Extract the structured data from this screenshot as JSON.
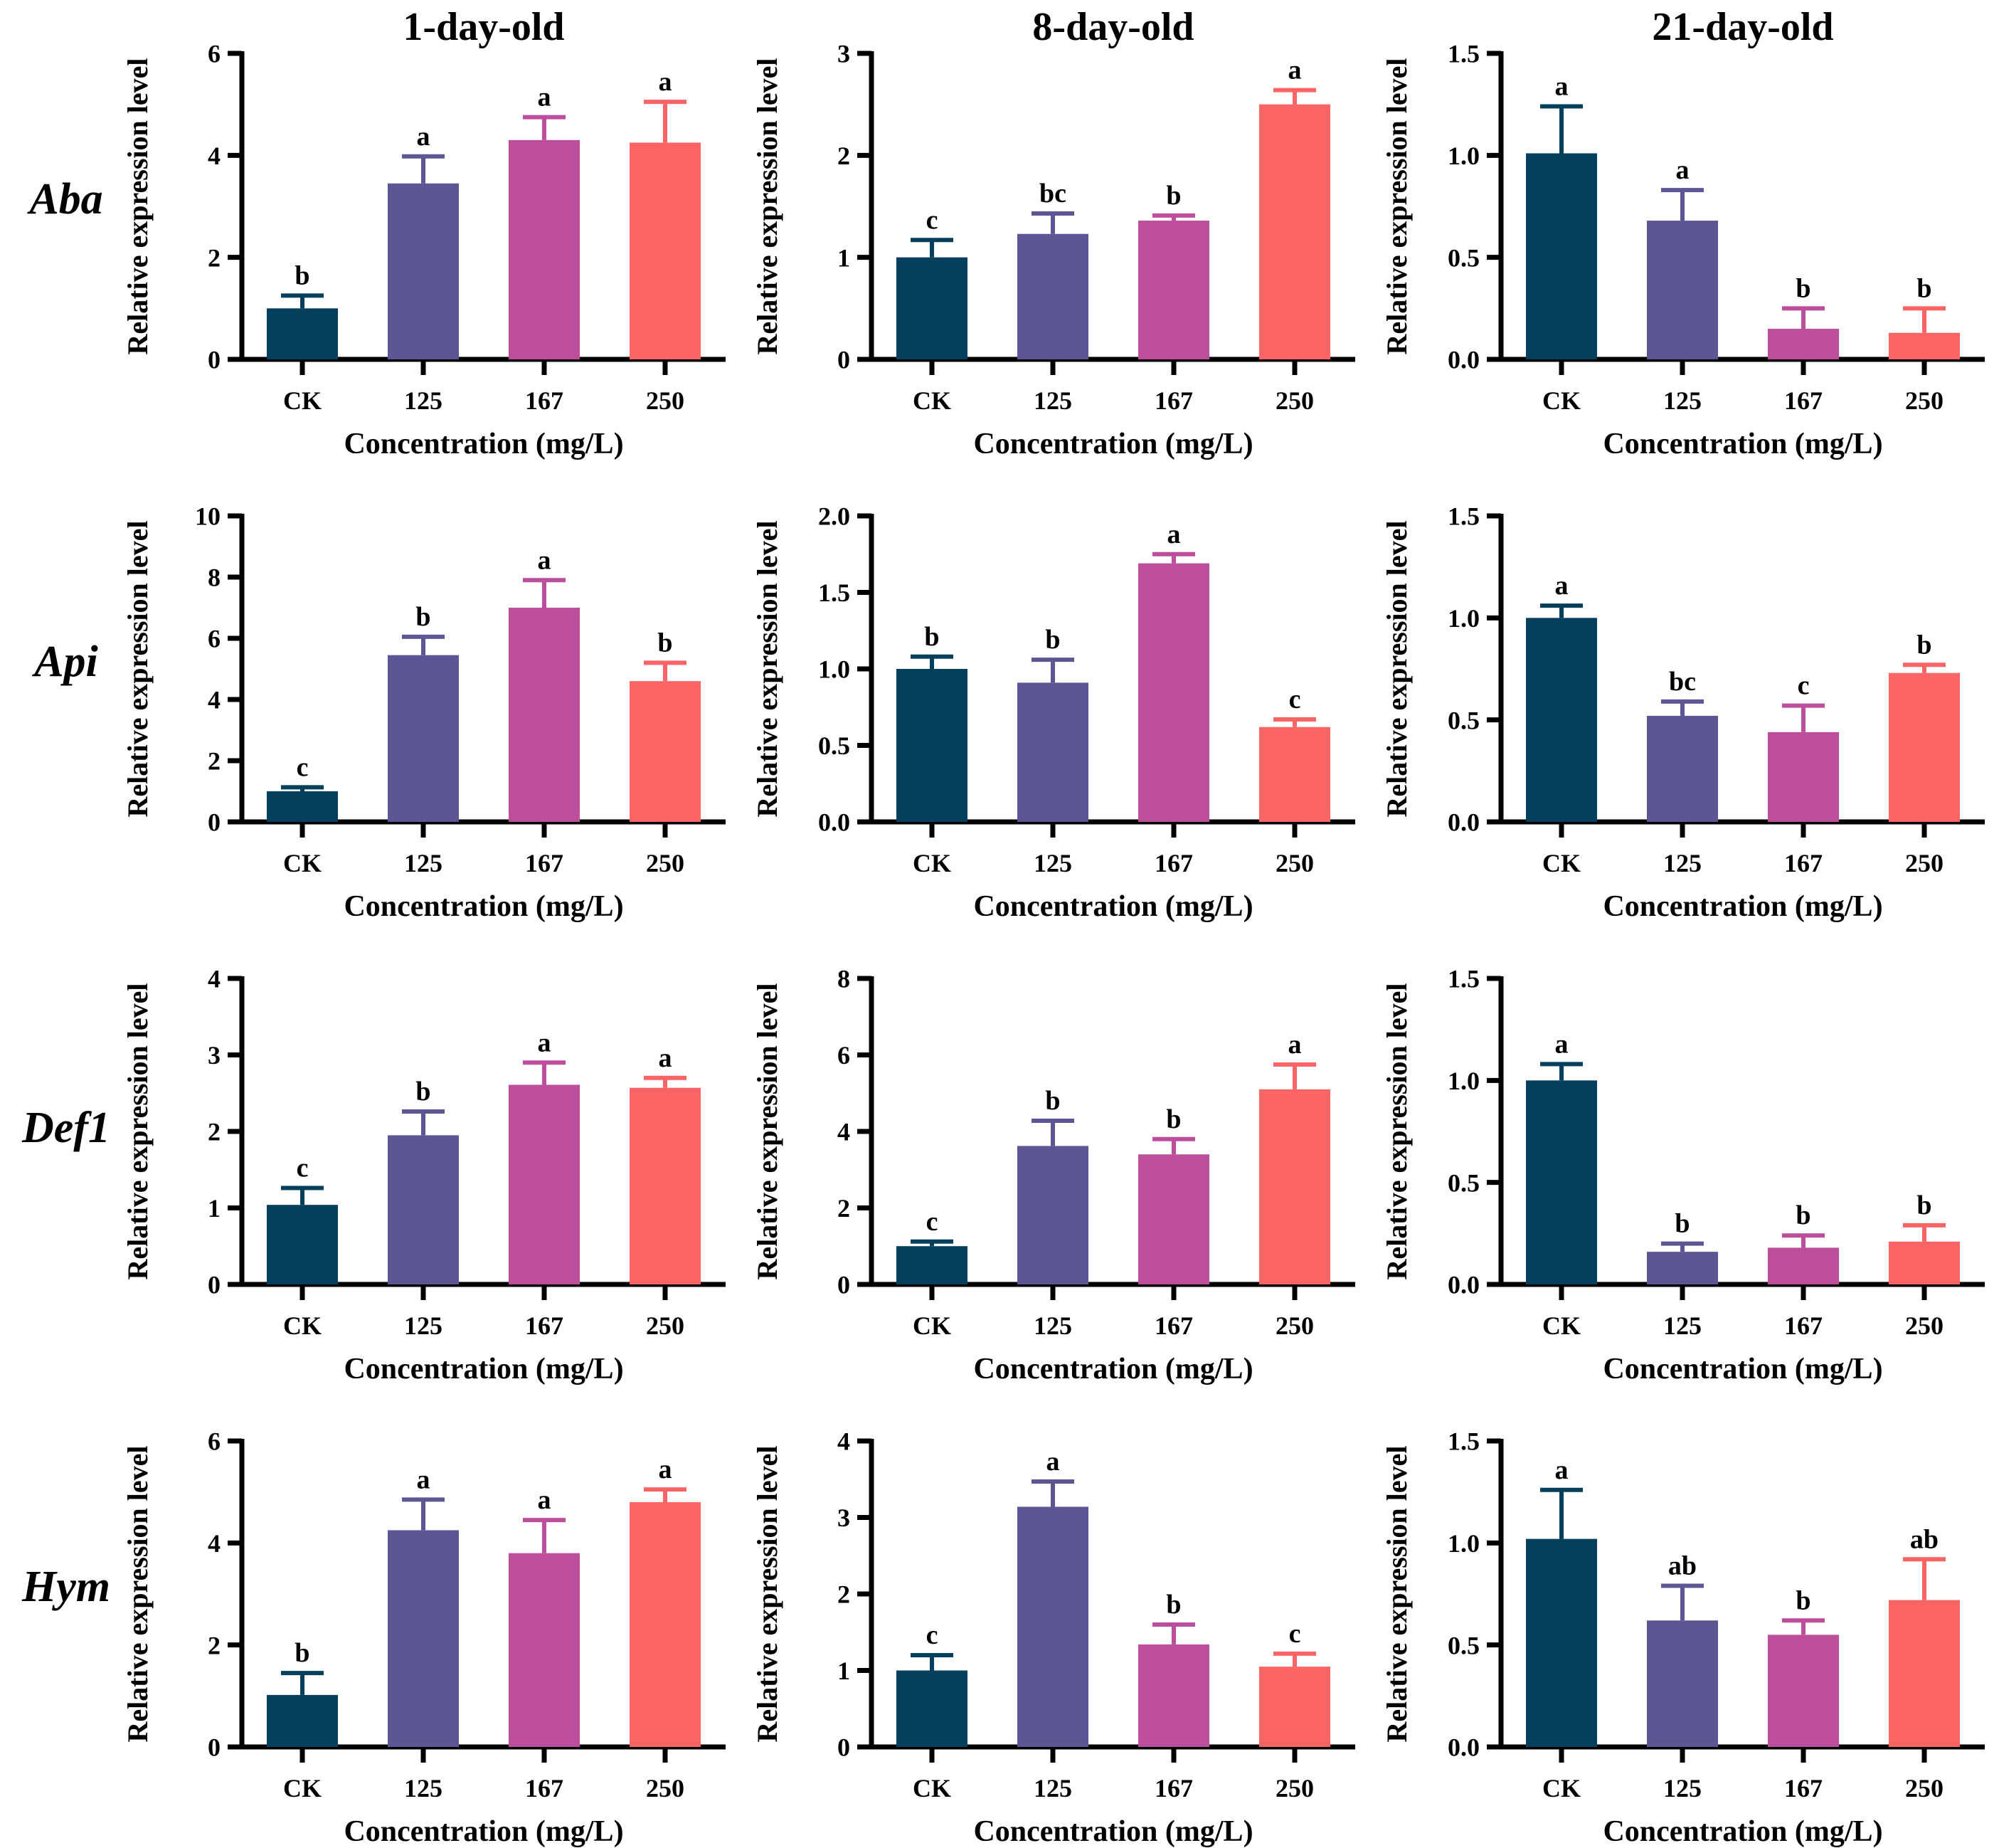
{
  "figure": {
    "column_titles": [
      "1-day-old",
      "8-day-old",
      "21-day-old"
    ],
    "row_labels": [
      "Aba",
      "Api",
      "Def1",
      "Hym"
    ],
    "ylabel": "Relative expression level",
    "xlabel": "Concentration (mg/L)",
    "categories": [
      "CK",
      "125",
      "167",
      "250"
    ],
    "bar_colors": [
      "#053F5C",
      "#5C5794",
      "#BC4E9B",
      "#FB6464"
    ],
    "axis_color": "#000000",
    "letter_color": "#000000"
  },
  "chart_data": [
    {
      "type": "bar",
      "gene": "Aba",
      "title": "1-day-old",
      "xlabel": "Concentration (mg/L)",
      "ylabel": "Relative expression level",
      "categories": [
        "CK",
        "125",
        "167",
        "250"
      ],
      "values": [
        1.0,
        3.45,
        4.3,
        4.25
      ],
      "errors_upper": [
        1.25,
        3.98,
        4.75,
        5.05
      ],
      "sig_letters": [
        "b",
        "a",
        "a",
        "a"
      ],
      "ylim": [
        0,
        6
      ],
      "yticks": [
        "0",
        "2",
        "4",
        "6"
      ]
    },
    {
      "type": "bar",
      "gene": "Aba",
      "title": "8-day-old",
      "xlabel": "Concentration (mg/L)",
      "ylabel": "Relative expression level",
      "categories": [
        "CK",
        "125",
        "167",
        "250"
      ],
      "values": [
        1.0,
        1.23,
        1.36,
        2.5
      ],
      "errors_upper": [
        1.17,
        1.43,
        1.41,
        2.64
      ],
      "sig_letters": [
        "c",
        "bc",
        "b",
        "a"
      ],
      "ylim": [
        0,
        3
      ],
      "yticks": [
        "0",
        "1",
        "2",
        "3"
      ]
    },
    {
      "type": "bar",
      "gene": "Aba",
      "title": "21-day-old",
      "xlabel": "Concentration (mg/L)",
      "ylabel": "Relative expression level",
      "categories": [
        "CK",
        "125",
        "167",
        "250"
      ],
      "values": [
        1.01,
        0.68,
        0.15,
        0.13
      ],
      "errors_upper": [
        1.24,
        0.83,
        0.25,
        0.25
      ],
      "sig_letters": [
        "a",
        "a",
        "b",
        "b"
      ],
      "ylim": [
        0,
        1.5
      ],
      "yticks": [
        "0.0",
        "0.5",
        "1.0",
        "1.5"
      ]
    },
    {
      "type": "bar",
      "gene": "Api",
      "title": "1-day-old",
      "xlabel": "Concentration (mg/L)",
      "ylabel": "Relative expression level",
      "categories": [
        "CK",
        "125",
        "167",
        "250"
      ],
      "values": [
        1.0,
        5.45,
        7.0,
        4.6
      ],
      "errors_upper": [
        1.13,
        6.05,
        7.9,
        5.2
      ],
      "sig_letters": [
        "c",
        "b",
        "a",
        "b"
      ],
      "ylim": [
        0,
        10
      ],
      "yticks": [
        "0",
        "2",
        "4",
        "6",
        "8",
        "10"
      ]
    },
    {
      "type": "bar",
      "gene": "Api",
      "title": "8-day-old",
      "xlabel": "Concentration (mg/L)",
      "ylabel": "Relative expression level",
      "categories": [
        "CK",
        "125",
        "167",
        "250"
      ],
      "values": [
        1.0,
        0.91,
        1.69,
        0.62
      ],
      "errors_upper": [
        1.08,
        1.06,
        1.75,
        0.67
      ],
      "sig_letters": [
        "b",
        "b",
        "a",
        "c"
      ],
      "ylim": [
        0,
        2
      ],
      "yticks": [
        "0.0",
        "0.5",
        "1.0",
        "1.5",
        "2.0"
      ]
    },
    {
      "type": "bar",
      "gene": "Api",
      "title": "21-day-old",
      "xlabel": "Concentration (mg/L)",
      "ylabel": "Relative expression level",
      "categories": [
        "CK",
        "125",
        "167",
        "250"
      ],
      "values": [
        1.0,
        0.52,
        0.44,
        0.73
      ],
      "errors_upper": [
        1.06,
        0.59,
        0.57,
        0.77
      ],
      "sig_letters": [
        "a",
        "bc",
        "c",
        "b"
      ],
      "ylim": [
        0,
        1.5
      ],
      "yticks": [
        "0.0",
        "0.5",
        "1.0",
        "1.5"
      ]
    },
    {
      "type": "bar",
      "gene": "Def1",
      "title": "1-day-old",
      "xlabel": "Concentration (mg/L)",
      "ylabel": "Relative expression level",
      "categories": [
        "CK",
        "125",
        "167",
        "250"
      ],
      "values": [
        1.04,
        1.95,
        2.61,
        2.57
      ],
      "errors_upper": [
        1.26,
        2.26,
        2.9,
        2.7
      ],
      "sig_letters": [
        "c",
        "b",
        "a",
        "a"
      ],
      "ylim": [
        0,
        4
      ],
      "yticks": [
        "0",
        "1",
        "2",
        "3",
        "4"
      ]
    },
    {
      "type": "bar",
      "gene": "Def1",
      "title": "8-day-old",
      "xlabel": "Concentration (mg/L)",
      "ylabel": "Relative expression level",
      "categories": [
        "CK",
        "125",
        "167",
        "250"
      ],
      "values": [
        1.0,
        3.62,
        3.4,
        5.1
      ],
      "errors_upper": [
        1.12,
        4.28,
        3.8,
        5.75
      ],
      "sig_letters": [
        "c",
        "b",
        "b",
        "a"
      ],
      "ylim": [
        0,
        8
      ],
      "yticks": [
        "0",
        "2",
        "4",
        "6",
        "8"
      ]
    },
    {
      "type": "bar",
      "gene": "Def1",
      "title": "21-day-old",
      "xlabel": "Concentration (mg/L)",
      "ylabel": "Relative expression level",
      "categories": [
        "CK",
        "125",
        "167",
        "250"
      ],
      "values": [
        1.0,
        0.16,
        0.18,
        0.21
      ],
      "errors_upper": [
        1.08,
        0.2,
        0.24,
        0.29
      ],
      "sig_letters": [
        "a",
        "b",
        "b",
        "b"
      ],
      "ylim": [
        0,
        1.5
      ],
      "yticks": [
        "0.0",
        "0.5",
        "1.0",
        "1.5"
      ]
    },
    {
      "type": "bar",
      "gene": "Hym",
      "title": "1-day-old",
      "xlabel": "Concentration (mg/L)",
      "ylabel": "Relative expression level",
      "categories": [
        "CK",
        "125",
        "167",
        "250"
      ],
      "values": [
        1.02,
        4.25,
        3.8,
        4.8
      ],
      "errors_upper": [
        1.45,
        4.85,
        4.45,
        5.05
      ],
      "sig_letters": [
        "b",
        "a",
        "a",
        "a"
      ],
      "ylim": [
        0,
        6
      ],
      "yticks": [
        "0",
        "2",
        "4",
        "6"
      ]
    },
    {
      "type": "bar",
      "gene": "Hym",
      "title": "8-day-old",
      "xlabel": "Concentration (mg/L)",
      "ylabel": "Relative expression level",
      "categories": [
        "CK",
        "125",
        "167",
        "250"
      ],
      "values": [
        1.0,
        3.14,
        1.34,
        1.05
      ],
      "errors_upper": [
        1.2,
        3.47,
        1.6,
        1.22
      ],
      "sig_letters": [
        "c",
        "a",
        "b",
        "c"
      ],
      "ylim": [
        0,
        4
      ],
      "yticks": [
        "0",
        "1",
        "2",
        "3",
        "4"
      ]
    },
    {
      "type": "bar",
      "gene": "Hym",
      "title": "21-day-old",
      "xlabel": "Concentration (mg/L)",
      "ylabel": "Relative expression level",
      "categories": [
        "CK",
        "125",
        "167",
        "250"
      ],
      "values": [
        1.02,
        0.62,
        0.55,
        0.72
      ],
      "errors_upper": [
        1.26,
        0.79,
        0.62,
        0.92
      ],
      "sig_letters": [
        "a",
        "ab",
        "b",
        "ab"
      ],
      "ylim": [
        0,
        1.5
      ],
      "yticks": [
        "0.0",
        "0.5",
        "1.0",
        "1.5"
      ]
    }
  ]
}
